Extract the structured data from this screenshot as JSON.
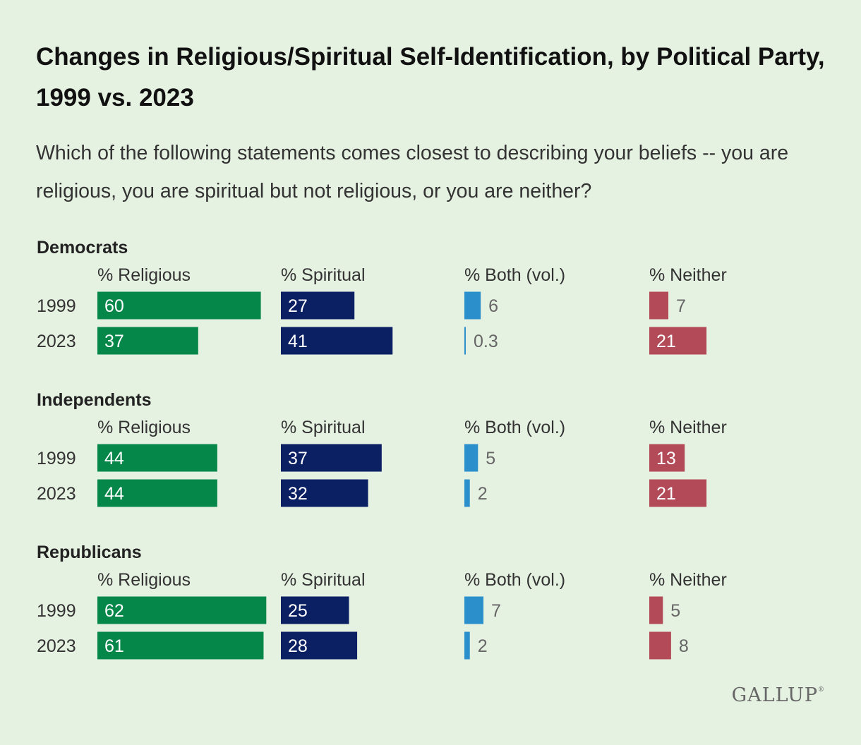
{
  "title": "Changes in Religious/Spiritual Self-Identification, by Political Party, 1999 vs. 2023",
  "subtitle": "Which of the following statements comes closest to describing your beliefs -- you are religious, you are spiritual but not religious, or you are neither?",
  "logo": {
    "text": "GALLUP",
    "mark": "®"
  },
  "colors": {
    "religious": "#06874a",
    "spiritual": "#0b1f63",
    "both": "#2a8fcb",
    "neither": "#b24a58",
    "background": "#e5f1e1"
  },
  "chart_data": {
    "type": "bar",
    "orientation": "horizontal",
    "columns": [
      "% Religious",
      "% Spiritual",
      "% Both (vol.)",
      "% Neither"
    ],
    "groups": [
      {
        "name": "Democrats",
        "rows": [
          {
            "year": "1999",
            "values": [
              60,
              27,
              6,
              7
            ]
          },
          {
            "year": "2023",
            "values": [
              37,
              41,
              0.3,
              21
            ]
          }
        ]
      },
      {
        "name": "Independents",
        "rows": [
          {
            "year": "1999",
            "values": [
              44,
              37,
              5,
              13
            ]
          },
          {
            "year": "2023",
            "values": [
              44,
              32,
              2,
              21
            ]
          }
        ]
      },
      {
        "name": "Republicans",
        "rows": [
          {
            "year": "1999",
            "values": [
              62,
              25,
              7,
              5
            ]
          },
          {
            "year": "2023",
            "values": [
              61,
              28,
              2,
              8
            ]
          }
        ]
      }
    ]
  }
}
